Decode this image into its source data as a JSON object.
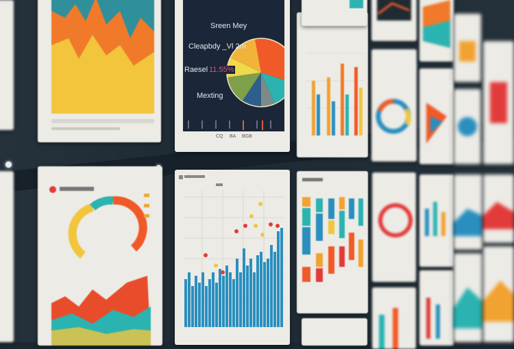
{
  "pie_panel": {
    "labels": [
      "Sreen Mey",
      "Cleapbdy _Vl 2m",
      "Raesel",
      "Mexting"
    ],
    "percent": "11.55%",
    "axis_labels": [
      "CQ",
      "BA",
      "BGB"
    ]
  },
  "colors": {
    "wall": "#1c2730",
    "panel": "#ecebe6",
    "screen": "#1b2638",
    "orange": "#f05a28",
    "yellow": "#f2c53d",
    "teal": "#2bb3b1",
    "blue": "#2a8fbf",
    "red": "#e23b3b"
  }
}
